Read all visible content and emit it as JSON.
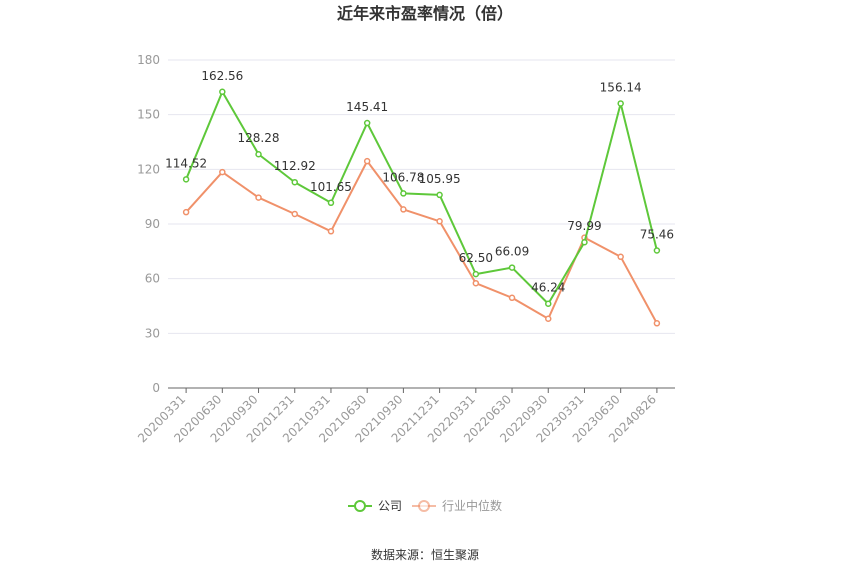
{
  "chart_data": {
    "type": "line",
    "title": "近年来市盈率情况（倍）",
    "xlabel": "",
    "ylabel": "",
    "categories": [
      "20200331",
      "20200630",
      "20200930",
      "20201231",
      "20210331",
      "20210630",
      "20210930",
      "20211231",
      "20220331",
      "20220630",
      "20220930",
      "20230331",
      "20230630",
      "20240826"
    ],
    "ylim": [
      0,
      180
    ],
    "yticks": [
      0,
      30,
      60,
      90,
      120,
      150,
      180
    ],
    "grid": true,
    "legend_position": "bottom",
    "series": [
      {
        "name": "公司",
        "color": "#5ec83a",
        "values": [
          114.52,
          162.56,
          128.28,
          112.92,
          101.65,
          145.41,
          106.78,
          105.95,
          62.5,
          66.09,
          46.24,
          79.99,
          156.14,
          75.46
        ],
        "labels": [
          "114.52",
          "162.56",
          "128.28",
          "112.92",
          "101.65",
          "145.41",
          "106.78",
          "105.95",
          "62.50",
          "66.09",
          "46.24",
          "79.99",
          "156.14",
          "75.46"
        ]
      },
      {
        "name": "行业中位数",
        "color": "#f0916a",
        "values": [
          96.5,
          118.5,
          104.5,
          95.5,
          86.0,
          124.5,
          98.0,
          91.5,
          57.5,
          49.5,
          38.0,
          82.5,
          72.0,
          35.5
        ]
      }
    ]
  },
  "source": "数据来源：恒生聚源"
}
